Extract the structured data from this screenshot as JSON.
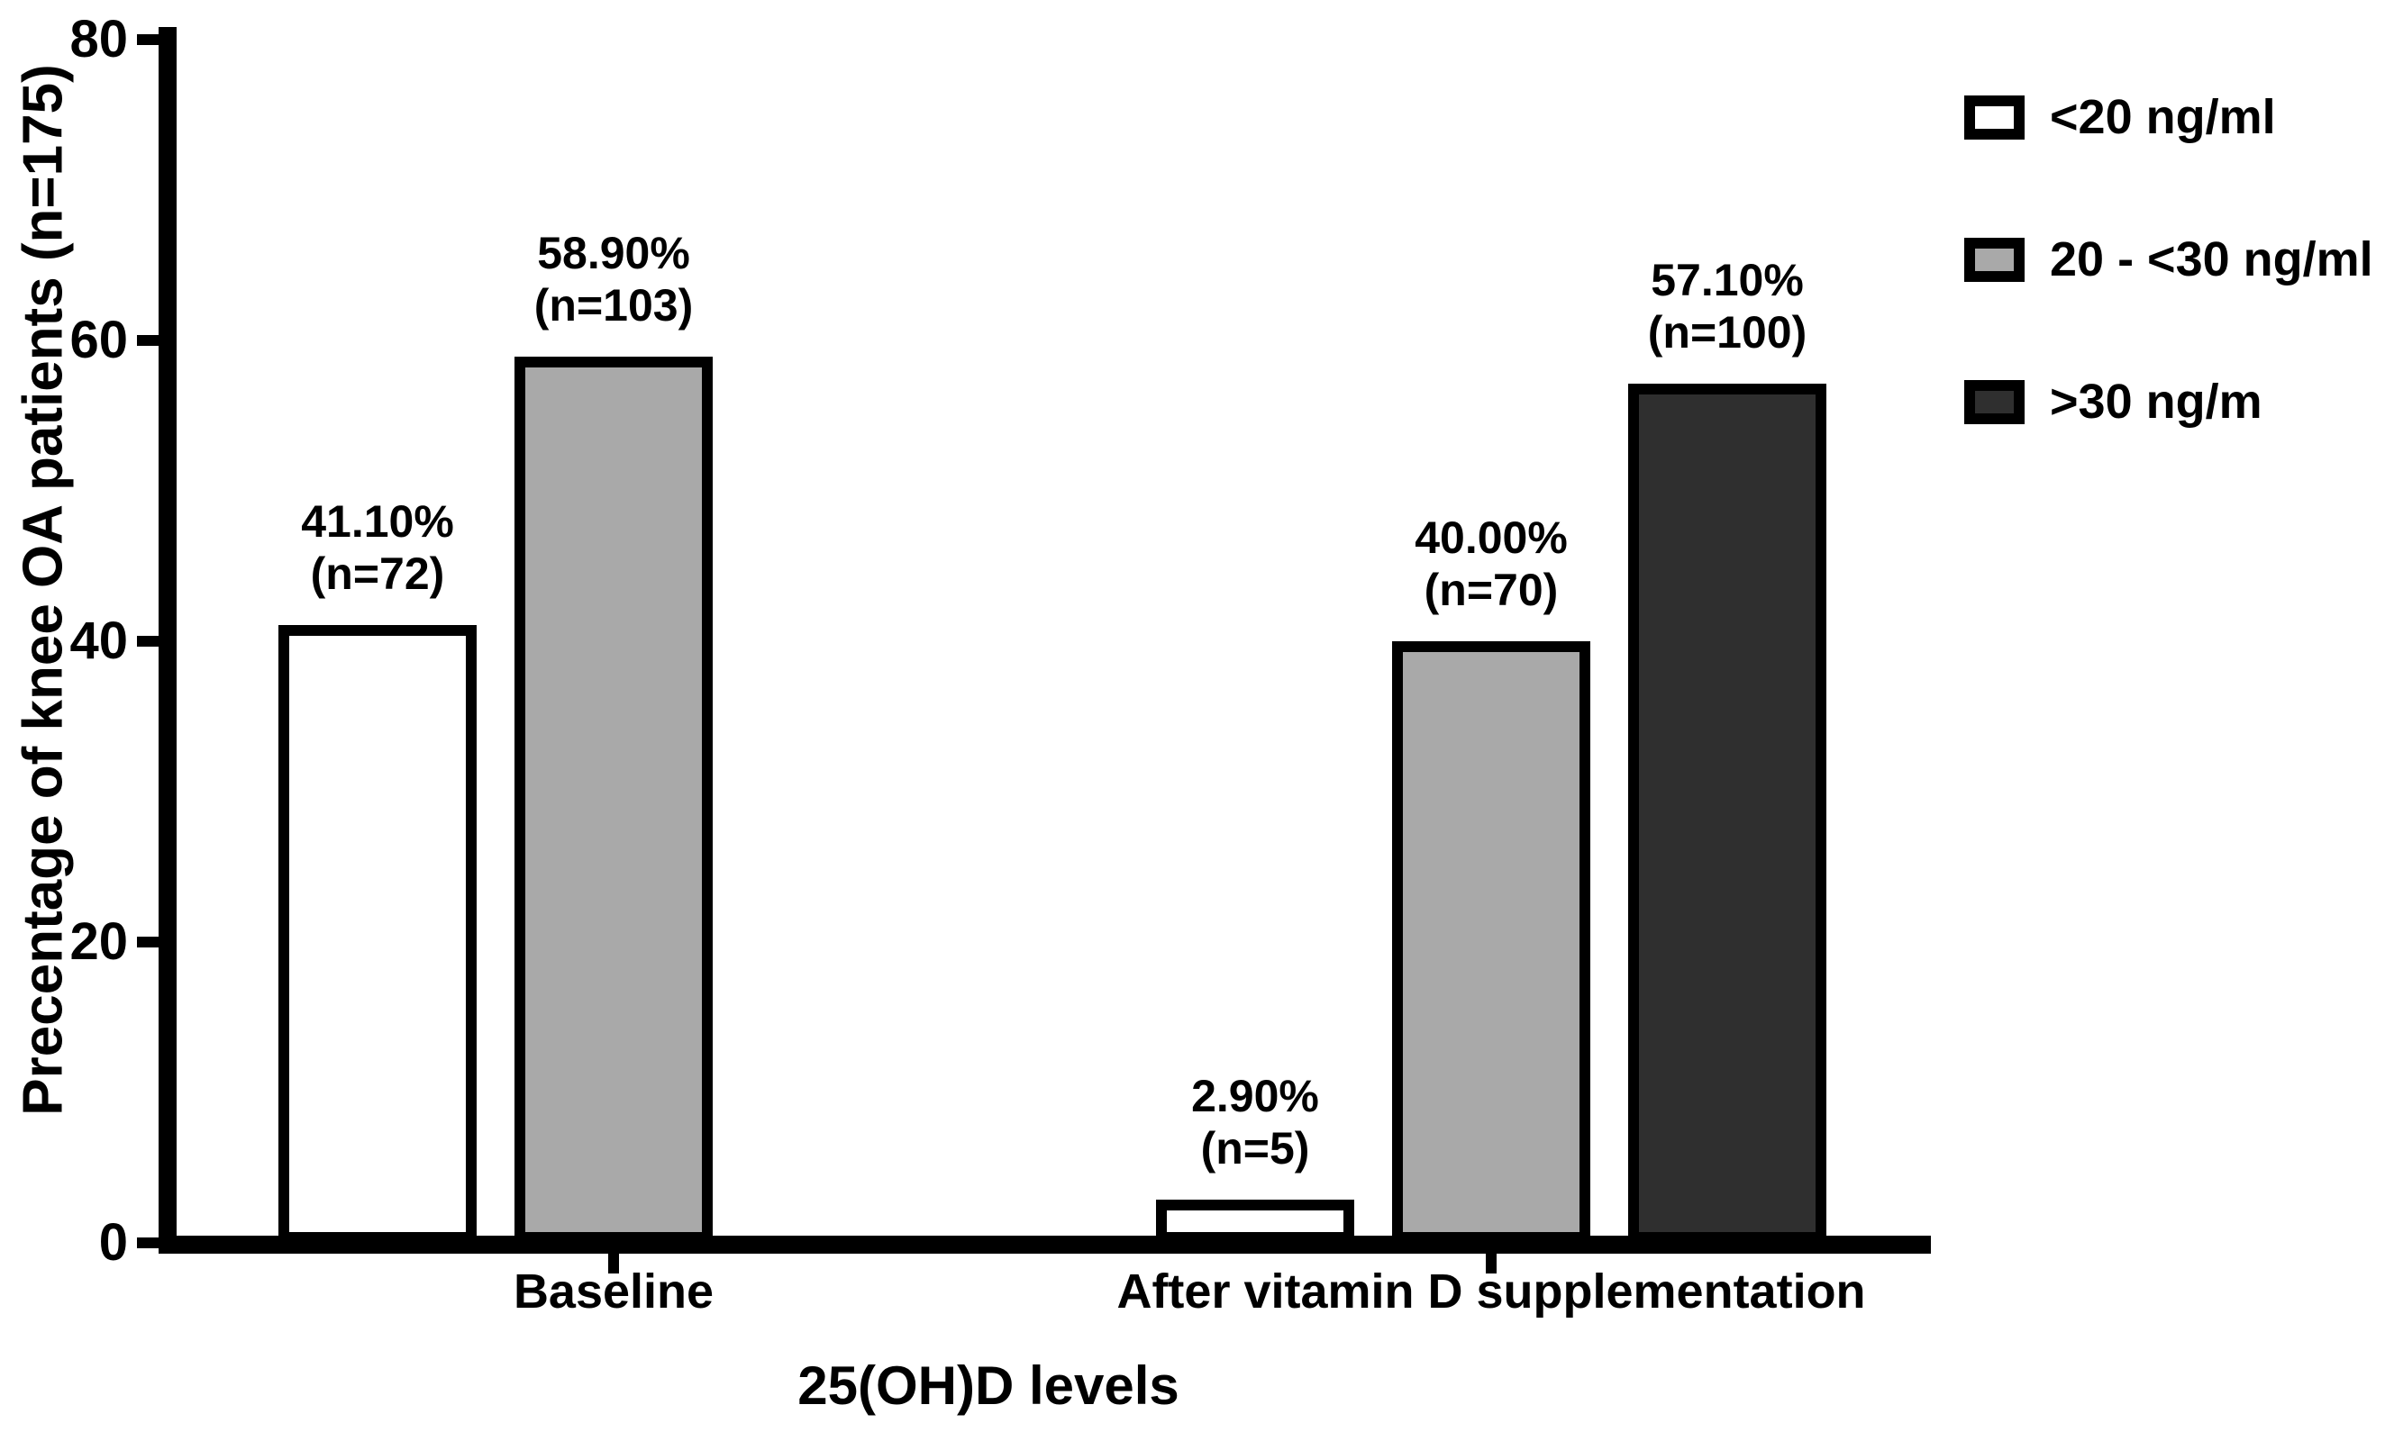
{
  "figure": {
    "background": "#ffffff",
    "axis_color": "#000000",
    "text_color": "#000000"
  },
  "chart_data": {
    "type": "bar",
    "title": "",
    "xlabel": "25(OH)D levels",
    "ylabel": "Precentage of knee OA patients (n=175)",
    "ylim": [
      0,
      80
    ],
    "yticks": [
      0,
      20,
      40,
      60,
      80
    ],
    "categories": [
      "Baseline",
      "After vitamin D supplementation"
    ],
    "series": [
      {
        "name": "<20 ng/ml",
        "fill": "#ffffff",
        "values": [
          41.1,
          2.9
        ],
        "bar_labels": [
          [
            "41.10%",
            "(n=72)"
          ],
          [
            "2.90%",
            "(n=5)"
          ]
        ]
      },
      {
        "name": "20 - <30 ng/ml",
        "fill": "#a9a9a9",
        "values": [
          58.9,
          40.0
        ],
        "bar_labels": [
          [
            "58.90%",
            "(n=103)"
          ],
          [
            "40.00%",
            "(n=70)"
          ]
        ]
      },
      {
        "name": ">30 ng/m",
        "fill": "#2f2f2f",
        "values": [
          null,
          57.1
        ],
        "bar_labels": [
          null,
          [
            "57.10%",
            "(n=100)"
          ]
        ]
      }
    ],
    "legend_position": "top-right",
    "grid": false
  }
}
